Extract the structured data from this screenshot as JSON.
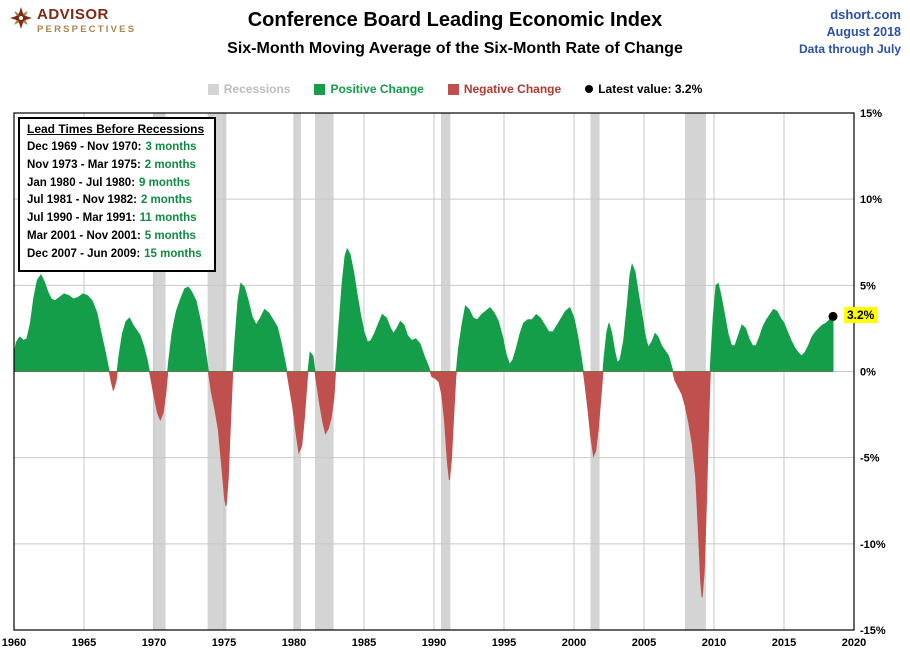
{
  "header": {
    "logo_line1": "ADVISOR",
    "logo_line2": "PERSPECTIVES",
    "title": "Conference Board Leading Economic Index",
    "subtitle": "Six-Month Moving Average of the Six-Month Rate of Change",
    "source": "dshort.com",
    "date": "August 2018",
    "data_through": "Data through July"
  },
  "legend": {
    "recessions": "Recessions",
    "positive": "Positive Change",
    "negative": "Negative Change",
    "latest": "Latest value: 3.2%"
  },
  "annotation": {
    "title": "Lead Times Before Recessions",
    "rows": [
      {
        "range": "Dec 1969 - Nov 1970:",
        "months": "3 months"
      },
      {
        "range": "Nov 1973 - Mar 1975:",
        "months": "2 months"
      },
      {
        "range": "Jan 1980 - Jul 1980:",
        "months": "9 months"
      },
      {
        "range": "Jul 1981 - Nov 1982:",
        "months": "2 months"
      },
      {
        "range": "Jul 1990 - Mar 1991:",
        "months": "11 months"
      },
      {
        "range": "Mar 2001 - Nov 2001:",
        "months": "5 months"
      },
      {
        "range": "Dec 2007 - Jun 2009:",
        "months": "15 months"
      }
    ]
  },
  "chart_data": {
    "type": "area",
    "title": "Conference Board Leading Economic Index",
    "subtitle": "Six-Month Moving Average of the Six-Month Rate of Change",
    "x_range": [
      1960,
      2020
    ],
    "y_range": [
      -15,
      15
    ],
    "x_ticks": [
      1960,
      1965,
      1970,
      1975,
      1980,
      1985,
      1990,
      1995,
      2000,
      2005,
      2010,
      2015,
      2020
    ],
    "y_ticks": [
      {
        "value": 15,
        "label": "15%"
      },
      {
        "value": 10,
        "label": "10%"
      },
      {
        "value": 5,
        "label": "5%"
      },
      {
        "value": 0,
        "label": "0%"
      },
      {
        "value": -5,
        "label": "-5%"
      },
      {
        "value": -10,
        "label": "-10%"
      },
      {
        "value": -15,
        "label": "-15%"
      }
    ],
    "grid": true,
    "legend_position": "top",
    "recessions": [
      {
        "start": 1969.92,
        "end": 1970.83
      },
      {
        "start": 1973.83,
        "end": 1975.17
      },
      {
        "start": 1980.0,
        "end": 1980.5
      },
      {
        "start": 1981.5,
        "end": 1982.83
      },
      {
        "start": 1990.5,
        "end": 1991.17
      },
      {
        "start": 2001.17,
        "end": 2001.83
      },
      {
        "start": 2007.92,
        "end": 2009.42
      }
    ],
    "series": {
      "name": "6-month MA of 6-month rate of change (%)",
      "points": [
        [
          1960.0,
          1.0
        ],
        [
          1960.17,
          1.7
        ],
        [
          1960.42,
          2.0
        ],
        [
          1960.67,
          1.8
        ],
        [
          1960.92,
          1.9
        ],
        [
          1961.17,
          2.8
        ],
        [
          1961.42,
          4.3
        ],
        [
          1961.67,
          5.3
        ],
        [
          1961.92,
          5.6
        ],
        [
          1962.17,
          5.2
        ],
        [
          1962.42,
          4.6
        ],
        [
          1962.67,
          4.2
        ],
        [
          1962.92,
          4.1
        ],
        [
          1963.25,
          4.3
        ],
        [
          1963.58,
          4.5
        ],
        [
          1963.92,
          4.4
        ],
        [
          1964.25,
          4.2
        ],
        [
          1964.58,
          4.3
        ],
        [
          1964.92,
          4.5
        ],
        [
          1965.25,
          4.4
        ],
        [
          1965.58,
          4.1
        ],
        [
          1965.92,
          3.4
        ],
        [
          1966.17,
          2.4
        ],
        [
          1966.5,
          1.2
        ],
        [
          1966.75,
          0.2
        ],
        [
          1966.95,
          -0.6
        ],
        [
          1967.1,
          -1.1
        ],
        [
          1967.3,
          -0.5
        ],
        [
          1967.5,
          0.9
        ],
        [
          1967.75,
          2.2
        ],
        [
          1968.0,
          2.9
        ],
        [
          1968.25,
          3.1
        ],
        [
          1968.5,
          2.7
        ],
        [
          1968.75,
          2.4
        ],
        [
          1969.0,
          2.1
        ],
        [
          1969.25,
          1.5
        ],
        [
          1969.5,
          0.7
        ],
        [
          1969.75,
          -0.3
        ],
        [
          1970.0,
          -1.4
        ],
        [
          1970.25,
          -2.4
        ],
        [
          1970.45,
          -2.8
        ],
        [
          1970.65,
          -2.4
        ],
        [
          1970.85,
          -1.2
        ],
        [
          1971.05,
          0.6
        ],
        [
          1971.3,
          2.3
        ],
        [
          1971.6,
          3.5
        ],
        [
          1971.9,
          4.2
        ],
        [
          1972.2,
          4.8
        ],
        [
          1972.45,
          4.9
        ],
        [
          1972.7,
          4.6
        ],
        [
          1973.0,
          4.1
        ],
        [
          1973.3,
          3.0
        ],
        [
          1973.6,
          1.6
        ],
        [
          1973.85,
          0.2
        ],
        [
          1974.1,
          -1.2
        ],
        [
          1974.35,
          -2.2
        ],
        [
          1974.6,
          -3.4
        ],
        [
          1974.85,
          -5.6
        ],
        [
          1975.05,
          -7.4
        ],
        [
          1975.15,
          -7.8
        ],
        [
          1975.3,
          -6.2
        ],
        [
          1975.45,
          -3.2
        ],
        [
          1975.6,
          -0.4
        ],
        [
          1975.8,
          2.0
        ],
        [
          1976.0,
          4.1
        ],
        [
          1976.2,
          5.1
        ],
        [
          1976.45,
          4.9
        ],
        [
          1976.7,
          4.2
        ],
        [
          1977.0,
          3.2
        ],
        [
          1977.3,
          2.7
        ],
        [
          1977.6,
          3.1
        ],
        [
          1977.9,
          3.6
        ],
        [
          1978.2,
          3.4
        ],
        [
          1978.5,
          3.0
        ],
        [
          1978.8,
          2.6
        ],
        [
          1979.1,
          1.6
        ],
        [
          1979.4,
          0.4
        ],
        [
          1979.65,
          -0.8
        ],
        [
          1979.9,
          -2.0
        ],
        [
          1980.15,
          -3.6
        ],
        [
          1980.35,
          -4.7
        ],
        [
          1980.55,
          -4.3
        ],
        [
          1980.75,
          -2.6
        ],
        [
          1980.95,
          -0.4
        ],
        [
          1981.15,
          1.1
        ],
        [
          1981.35,
          0.9
        ],
        [
          1981.55,
          -0.3
        ],
        [
          1981.8,
          -1.7
        ],
        [
          1982.05,
          -2.9
        ],
        [
          1982.25,
          -3.6
        ],
        [
          1982.45,
          -3.3
        ],
        [
          1982.65,
          -2.7
        ],
        [
          1982.85,
          -1.5
        ],
        [
          1983.0,
          0.4
        ],
        [
          1983.2,
          2.6
        ],
        [
          1983.45,
          5.2
        ],
        [
          1983.65,
          6.7
        ],
        [
          1983.8,
          7.1
        ],
        [
          1984.0,
          6.8
        ],
        [
          1984.25,
          5.8
        ],
        [
          1984.5,
          4.5
        ],
        [
          1984.75,
          3.3
        ],
        [
          1985.0,
          2.3
        ],
        [
          1985.25,
          1.7
        ],
        [
          1985.5,
          1.8
        ],
        [
          1985.75,
          2.2
        ],
        [
          1986.0,
          2.7
        ],
        [
          1986.3,
          3.3
        ],
        [
          1986.6,
          3.1
        ],
        [
          1986.9,
          2.5
        ],
        [
          1987.1,
          2.2
        ],
        [
          1987.35,
          2.5
        ],
        [
          1987.6,
          2.9
        ],
        [
          1987.85,
          2.7
        ],
        [
          1988.1,
          2.1
        ],
        [
          1988.4,
          1.8
        ],
        [
          1988.7,
          1.9
        ],
        [
          1989.0,
          1.6
        ],
        [
          1989.3,
          0.9
        ],
        [
          1989.6,
          0.3
        ],
        [
          1989.85,
          -0.3
        ],
        [
          1990.1,
          -0.4
        ],
        [
          1990.35,
          -0.6
        ],
        [
          1990.55,
          -1.3
        ],
        [
          1990.75,
          -2.8
        ],
        [
          1990.95,
          -5.2
        ],
        [
          1991.1,
          -6.3
        ],
        [
          1991.25,
          -5.0
        ],
        [
          1991.4,
          -2.6
        ],
        [
          1991.55,
          -0.4
        ],
        [
          1991.75,
          1.3
        ],
        [
          1992.0,
          2.7
        ],
        [
          1992.25,
          3.8
        ],
        [
          1992.5,
          3.6
        ],
        [
          1992.8,
          3.1
        ],
        [
          1993.1,
          3.0
        ],
        [
          1993.4,
          3.3
        ],
        [
          1993.7,
          3.5
        ],
        [
          1994.0,
          3.7
        ],
        [
          1994.3,
          3.4
        ],
        [
          1994.6,
          2.9
        ],
        [
          1994.9,
          2.0
        ],
        [
          1995.15,
          1.0
        ],
        [
          1995.4,
          0.4
        ],
        [
          1995.65,
          0.7
        ],
        [
          1995.9,
          1.4
        ],
        [
          1996.15,
          2.2
        ],
        [
          1996.4,
          2.8
        ],
        [
          1996.7,
          3.0
        ],
        [
          1997.0,
          3.0
        ],
        [
          1997.3,
          3.3
        ],
        [
          1997.6,
          3.1
        ],
        [
          1997.9,
          2.7
        ],
        [
          1998.2,
          2.3
        ],
        [
          1998.5,
          2.3
        ],
        [
          1998.8,
          2.7
        ],
        [
          1999.1,
          3.1
        ],
        [
          1999.4,
          3.5
        ],
        [
          1999.7,
          3.7
        ],
        [
          2000.0,
          3.1
        ],
        [
          2000.25,
          2.1
        ],
        [
          2000.5,
          0.9
        ],
        [
          2000.75,
          -0.5
        ],
        [
          2001.0,
          -2.2
        ],
        [
          2001.2,
          -3.8
        ],
        [
          2001.4,
          -4.9
        ],
        [
          2001.55,
          -4.6
        ],
        [
          2001.75,
          -3.2
        ],
        [
          2001.95,
          -1.2
        ],
        [
          2002.15,
          0.8
        ],
        [
          2002.35,
          2.3
        ],
        [
          2002.5,
          2.8
        ],
        [
          2002.7,
          2.2
        ],
        [
          2002.9,
          1.2
        ],
        [
          2003.1,
          0.5
        ],
        [
          2003.3,
          0.7
        ],
        [
          2003.55,
          1.8
        ],
        [
          2003.8,
          3.8
        ],
        [
          2004.0,
          5.6
        ],
        [
          2004.15,
          6.2
        ],
        [
          2004.35,
          5.8
        ],
        [
          2004.6,
          4.5
        ],
        [
          2004.85,
          3.3
        ],
        [
          2005.1,
          2.0
        ],
        [
          2005.3,
          1.4
        ],
        [
          2005.55,
          1.7
        ],
        [
          2005.8,
          2.2
        ],
        [
          2006.0,
          2.0
        ],
        [
          2006.25,
          1.5
        ],
        [
          2006.5,
          1.2
        ],
        [
          2006.75,
          0.9
        ],
        [
          2007.0,
          0.2
        ],
        [
          2007.2,
          -0.5
        ],
        [
          2007.45,
          -0.9
        ],
        [
          2007.7,
          -1.3
        ],
        [
          2007.95,
          -2.0
        ],
        [
          2008.2,
          -3.0
        ],
        [
          2008.45,
          -4.2
        ],
        [
          2008.7,
          -6.2
        ],
        [
          2008.9,
          -9.5
        ],
        [
          2009.05,
          -12.2
        ],
        [
          2009.15,
          -13.1
        ],
        [
          2009.3,
          -11.6
        ],
        [
          2009.45,
          -7.8
        ],
        [
          2009.6,
          -3.4
        ],
        [
          2009.75,
          0.4
        ],
        [
          2009.95,
          3.2
        ],
        [
          2010.15,
          5.0
        ],
        [
          2010.3,
          5.1
        ],
        [
          2010.5,
          4.4
        ],
        [
          2010.75,
          3.3
        ],
        [
          2011.0,
          2.2
        ],
        [
          2011.25,
          1.5
        ],
        [
          2011.5,
          1.5
        ],
        [
          2011.75,
          2.1
        ],
        [
          2012.0,
          2.7
        ],
        [
          2012.25,
          2.5
        ],
        [
          2012.5,
          1.9
        ],
        [
          2012.75,
          1.5
        ],
        [
          2013.0,
          1.5
        ],
        [
          2013.25,
          2.0
        ],
        [
          2013.5,
          2.6
        ],
        [
          2013.75,
          3.0
        ],
        [
          2014.0,
          3.3
        ],
        [
          2014.25,
          3.6
        ],
        [
          2014.5,
          3.5
        ],
        [
          2014.75,
          3.1
        ],
        [
          2015.0,
          2.8
        ],
        [
          2015.25,
          2.3
        ],
        [
          2015.5,
          1.8
        ],
        [
          2015.75,
          1.4
        ],
        [
          2016.0,
          1.1
        ],
        [
          2016.25,
          0.9
        ],
        [
          2016.5,
          1.1
        ],
        [
          2016.75,
          1.5
        ],
        [
          2017.0,
          2.0
        ],
        [
          2017.25,
          2.3
        ],
        [
          2017.5,
          2.5
        ],
        [
          2017.75,
          2.7
        ],
        [
          2018.0,
          2.8
        ],
        [
          2018.25,
          3.0
        ],
        [
          2018.5,
          3.2
        ]
      ]
    },
    "latest": {
      "x": 2018.5,
      "value": 3.2,
      "label": "3.2%"
    },
    "colors": {
      "positive": "#149E49",
      "negative": "#C0504D",
      "recession": "#D4D4D4",
      "grid": "#C8C8C8",
      "border": "#000000",
      "latest_highlight": "#FFFF00",
      "source_text": "#2B50A8",
      "logo_red": "#7E2817",
      "logo_gold": "#A8874D"
    }
  }
}
